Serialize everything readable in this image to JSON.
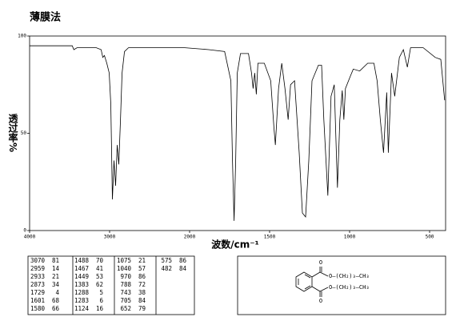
{
  "chart_data": {
    "type": "line",
    "title": "薄膜法",
    "x_label": "波数/cm⁻¹",
    "y_label": "透过率%",
    "xlim": [
      4000,
      400
    ],
    "x_scale_break": 2000,
    "xticks": [
      4000,
      3000,
      2000,
      1500,
      1000,
      500
    ],
    "ylim": [
      0,
      100
    ],
    "yticks": [
      0,
      50,
      100
    ],
    "color": "#000000",
    "x": [
      4000,
      3769,
      3467,
      3447,
      3407,
      3166,
      3106,
      3085,
      3065,
      3035,
      3005,
      2985,
      2965,
      2945,
      2925,
      2905,
      2885,
      2864,
      2844,
      2814,
      2764,
      2362,
      2060,
      1881,
      1781,
      1742,
      1732,
      1722,
      1712,
      1702,
      1682,
      1632,
      1613,
      1603,
      1593,
      1583,
      1573,
      1533,
      1493,
      1473,
      1464,
      1444,
      1424,
      1404,
      1384,
      1369,
      1344,
      1315,
      1295,
      1275,
      1255,
      1235,
      1195,
      1175,
      1161,
      1136,
      1116,
      1096,
      1076,
      1061,
      1046,
      1036,
      1026,
      997,
      977,
      937,
      887,
      848,
      828,
      808,
      788,
      768,
      758,
      738,
      718,
      689,
      664,
      639,
      619,
      540,
      465,
      430,
      406
    ],
    "values": [
      95,
      95,
      95,
      93,
      94,
      94,
      93,
      89,
      90,
      86,
      81,
      65,
      16,
      36,
      23,
      44,
      34,
      57,
      81,
      92,
      94,
      94,
      94,
      93,
      92,
      77,
      36,
      5,
      36,
      81,
      91,
      91,
      81,
      73,
      81,
      70,
      86,
      86,
      77,
      53,
      44,
      73,
      86,
      73,
      57,
      75,
      77,
      40,
      9,
      7,
      36,
      77,
      85,
      85,
      57,
      18,
      69,
      75,
      22,
      57,
      72,
      57,
      73,
      79,
      83,
      82,
      86,
      86,
      77,
      57,
      40,
      71,
      40,
      81,
      69,
      89,
      93,
      84,
      94,
      94,
      89,
      88,
      67
    ],
    "peaks": [
      [
        3070,
        81
      ],
      [
        2959,
        14
      ],
      [
        2933,
        21
      ],
      [
        2873,
        34
      ],
      [
        1729,
        4
      ],
      [
        1601,
        68
      ],
      [
        1580,
        66
      ],
      [
        1488,
        70
      ],
      [
        1467,
        41
      ],
      [
        1449,
        53
      ],
      [
        1383,
        62
      ],
      [
        1288,
        5
      ],
      [
        1283,
        6
      ],
      [
        1124,
        16
      ],
      [
        1075,
        21
      ],
      [
        1040,
        57
      ],
      [
        970,
        86
      ],
      [
        788,
        72
      ],
      [
        743,
        38
      ],
      [
        705,
        84
      ],
      [
        652,
        79
      ],
      [
        575,
        86
      ],
      [
        482,
        84
      ]
    ],
    "structure": {
      "carbonyl": [
        "O",
        "O"
      ],
      "chains": [
        "O—(CH₂)₃—CH₃",
        "O—(CH₂)₃—CH₃"
      ]
    }
  }
}
